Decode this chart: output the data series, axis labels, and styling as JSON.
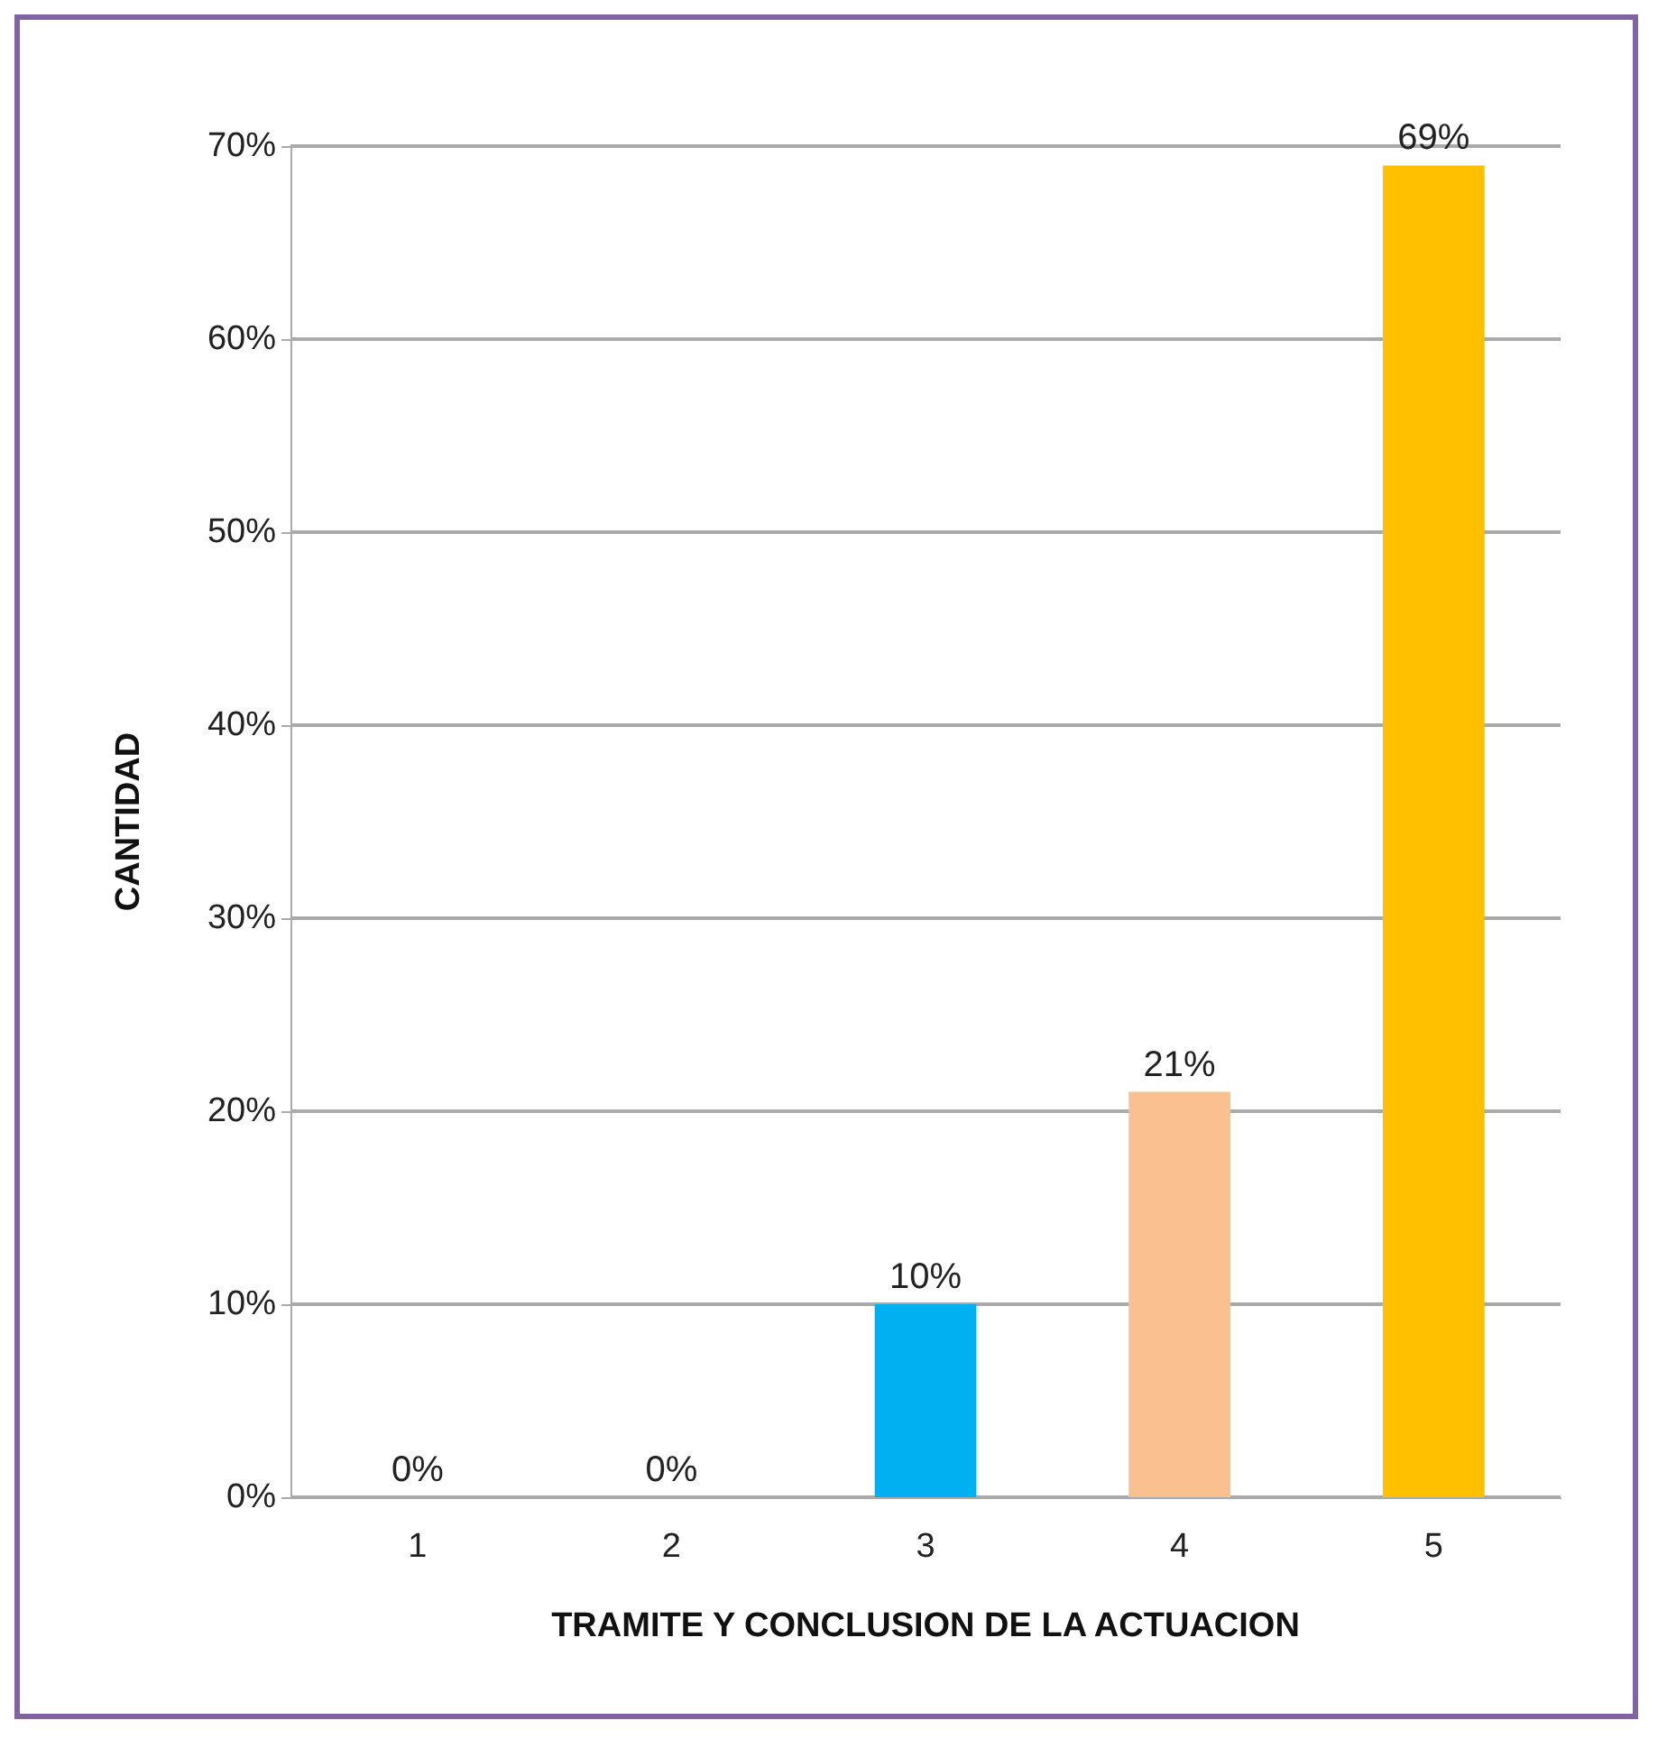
{
  "chart_data": {
    "type": "bar",
    "xlabel": "TRAMITE Y CONCLUSION DE LA ACTUACION",
    "ylabel": "CANTIDAD",
    "categories": [
      "1",
      "2",
      "3",
      "4",
      "5"
    ],
    "values": [
      0,
      0,
      10,
      21,
      69
    ],
    "colors": [
      "#3f2e5a",
      "#7b2020",
      "#00b0f0",
      "#fac090",
      "#ffc000"
    ],
    "value_labels": [
      "0%",
      "0%",
      "10%",
      "21%",
      "69%"
    ],
    "ylim": [
      0,
      70
    ],
    "yticks": [
      {
        "value": 0,
        "label": "0%"
      },
      {
        "value": 10,
        "label": "10%"
      },
      {
        "value": 20,
        "label": "20%"
      },
      {
        "value": 30,
        "label": "30%"
      },
      {
        "value": 40,
        "label": "40%"
      },
      {
        "value": 50,
        "label": "50%"
      },
      {
        "value": 60,
        "label": "60%"
      },
      {
        "value": 70,
        "label": "70%"
      }
    ],
    "grid": true
  }
}
